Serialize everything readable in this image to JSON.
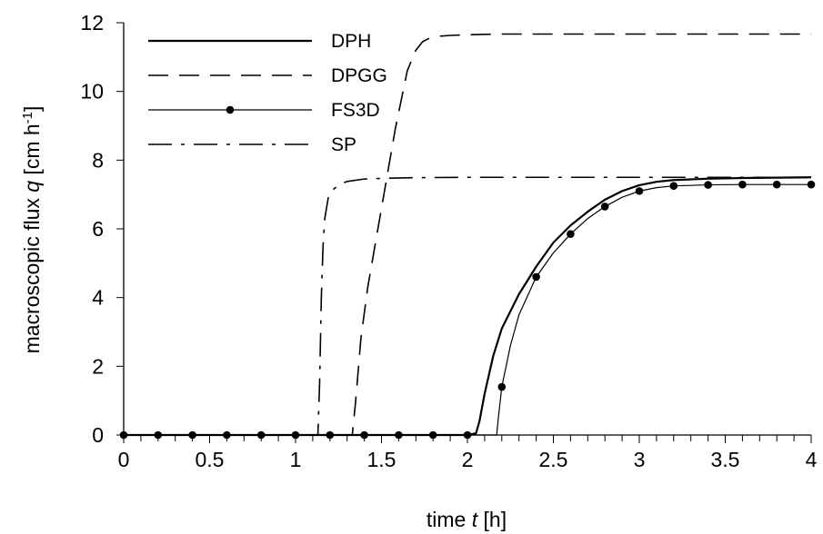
{
  "chart_data": {
    "type": "line",
    "xlabel": {
      "prefix": "time ",
      "var": "t",
      "suffix": " [h]"
    },
    "ylabel": {
      "prefix": "macroscopic flux ",
      "var": "q",
      "suffix": " [cm h",
      "sup": "-1",
      "end": "]"
    },
    "xlim": [
      0,
      4
    ],
    "ylim": [
      0,
      12
    ],
    "x_ticks": [
      0,
      0.5,
      1,
      1.5,
      2,
      2.5,
      3,
      3.5,
      4
    ],
    "x_tick_labels": [
      "0",
      "0.5",
      "1",
      "1.5",
      "2",
      "2.5",
      "3",
      "3.5",
      "4"
    ],
    "y_ticks": [
      0,
      2,
      4,
      6,
      8,
      10,
      12
    ],
    "y_tick_labels": [
      "0",
      "2",
      "4",
      "6",
      "8",
      "10",
      "12"
    ],
    "x_minor_step": 0.1,
    "grid": false,
    "legend_position": "top-left",
    "series": [
      {
        "name": "DPH",
        "style": "solid",
        "stroke_width": 2.2,
        "markers": false,
        "x": [
          0,
          2.0,
          2.05,
          2.07,
          2.1,
          2.15,
          2.2,
          2.3,
          2.4,
          2.5,
          2.6,
          2.7,
          2.8,
          2.9,
          3.0,
          3.1,
          3.2,
          3.4,
          3.6,
          3.8,
          4.0
        ],
        "y": [
          0,
          0,
          0.05,
          0.4,
          1.2,
          2.3,
          3.1,
          4.1,
          4.9,
          5.6,
          6.1,
          6.5,
          6.85,
          7.1,
          7.27,
          7.37,
          7.42,
          7.46,
          7.48,
          7.49,
          7.5
        ]
      },
      {
        "name": "DPGG",
        "style": "dashed",
        "stroke_width": 1.6,
        "markers": false,
        "x": [
          0,
          1.33,
          1.35,
          1.38,
          1.42,
          1.5,
          1.58,
          1.65,
          1.7,
          1.74,
          1.78,
          1.82,
          1.9,
          2.0,
          2.2,
          2.5,
          3.0,
          3.5,
          4.0
        ],
        "y": [
          0,
          0,
          1.0,
          2.8,
          4.3,
          6.6,
          8.9,
          10.6,
          11.2,
          11.45,
          11.55,
          11.6,
          11.63,
          11.65,
          11.67,
          11.67,
          11.67,
          11.67,
          11.67
        ]
      },
      {
        "name": "FS3D",
        "style": "solid",
        "stroke_width": 1.2,
        "markers": true,
        "x": [
          0,
          2.17,
          2.18,
          2.2,
          2.25,
          2.3,
          2.4,
          2.5,
          2.6,
          2.7,
          2.8,
          2.9,
          3.0,
          3.1,
          3.2,
          3.4,
          3.6,
          3.8,
          4.0
        ],
        "y": [
          0,
          0,
          0.5,
          1.4,
          2.6,
          3.5,
          4.6,
          5.3,
          5.85,
          6.3,
          6.65,
          6.92,
          7.1,
          7.2,
          7.25,
          7.28,
          7.29,
          7.29,
          7.29
        ],
        "marker_x": [
          0,
          0.2,
          0.4,
          0.6,
          0.8,
          1.0,
          1.2,
          1.4,
          1.6,
          1.8,
          2.0,
          2.2,
          2.4,
          2.6,
          2.8,
          3.0,
          3.2,
          3.4,
          3.6,
          3.8,
          4.0
        ],
        "marker_y": [
          0,
          0,
          0,
          0,
          0,
          0,
          0,
          0,
          0,
          0,
          0,
          1.4,
          4.6,
          5.85,
          6.65,
          7.1,
          7.25,
          7.28,
          7.29,
          7.29,
          7.29
        ]
      },
      {
        "name": "SP",
        "style": "dashdot",
        "stroke_width": 1.6,
        "markers": false,
        "x": [
          0,
          1.13,
          1.14,
          1.15,
          1.16,
          1.17,
          1.19,
          1.22,
          1.26,
          1.3,
          1.4,
          1.5,
          1.7,
          2.0,
          3.0,
          4.0
        ],
        "y": [
          0,
          0,
          1.5,
          4.0,
          5.5,
          6.3,
          6.9,
          7.15,
          7.3,
          7.38,
          7.45,
          7.47,
          7.49,
          7.5,
          7.5,
          7.5
        ]
      }
    ]
  }
}
